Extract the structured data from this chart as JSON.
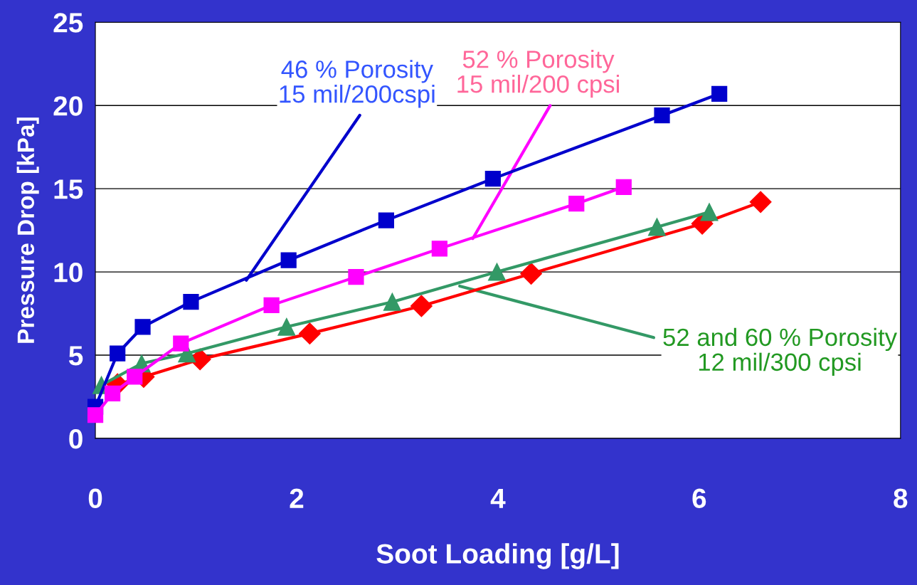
{
  "chart_data": {
    "type": "line",
    "xlabel": "Soot Loading [g/L]",
    "ylabel": "Pressure Drop [kPa]",
    "xlim": [
      0,
      8
    ],
    "ylim": [
      0,
      25
    ],
    "xticks": [
      0,
      2,
      4,
      6,
      8
    ],
    "yticks": [
      0,
      5,
      10,
      15,
      20,
      25
    ],
    "grid": "y",
    "series": [
      {
        "color": "#0000cc",
        "marker": "square",
        "x": [
          0,
          0.22,
          0.47,
          0.95,
          1.92,
          2.89,
          3.95,
          5.63,
          6.2
        ],
        "values": [
          1.9,
          5.1,
          6.7,
          8.2,
          10.7,
          13.1,
          15.6,
          19.4,
          20.7
        ]
      },
      {
        "color": "#ff00ff",
        "marker": "square",
        "x": [
          0,
          0.17,
          0.39,
          0.85,
          1.75,
          2.59,
          3.42,
          4.78,
          5.25
        ],
        "values": [
          1.4,
          2.7,
          3.7,
          5.7,
          8.0,
          9.7,
          11.4,
          14.1,
          15.1
        ]
      },
      {
        "color": "#339966",
        "marker": "triangle",
        "x": [
          0.06,
          0.46,
          0.91,
          1.9,
          2.95,
          3.99,
          5.58,
          6.1
        ],
        "values": [
          3.2,
          4.5,
          5.1,
          6.7,
          8.2,
          10.0,
          12.7,
          13.6
        ]
      },
      {
        "color": "#ff0000",
        "marker": "diamond",
        "x": [
          0.22,
          0.48,
          1.04,
          2.13,
          3.24,
          4.33,
          6.03,
          6.61
        ],
        "values": [
          3.25,
          3.7,
          4.75,
          6.3,
          7.95,
          9.9,
          12.9,
          14.2
        ]
      }
    ],
    "annotations": [
      {
        "text": "46 % Porosity\n15 mil/200cspi",
        "x": 1.5,
        "y": 9.5
      },
      {
        "text": "52 % Porosity\n15 mil/200 cpsi",
        "x": 3.75,
        "y": 12
      },
      {
        "text": "52 and 60 % Porosity\n12 mil/300 cpsi",
        "x": 3.62,
        "y": 9.15
      }
    ]
  }
}
